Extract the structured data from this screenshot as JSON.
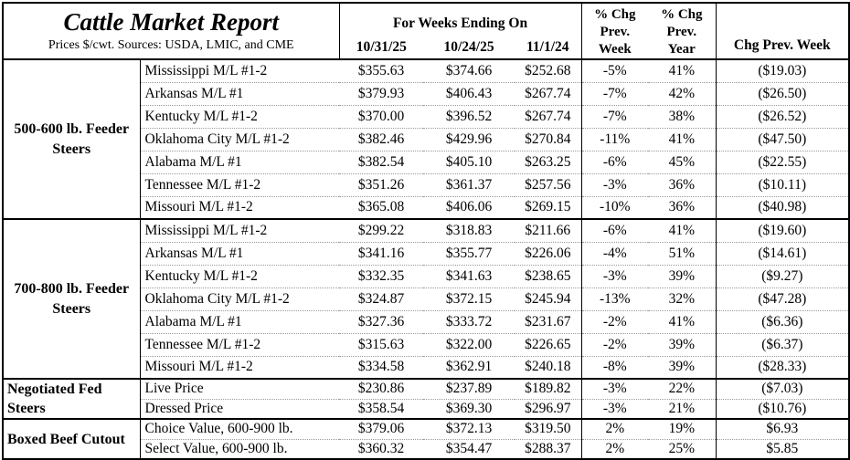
{
  "header": {
    "title": "Cattle Market Report",
    "subtitle": "Prices $/cwt. Sources: USDA, LMIC, and CME",
    "weeks_label": "For Weeks Ending On",
    "dates": [
      "10/31/25",
      "10/24/25",
      "11/1/24"
    ],
    "pct_chg_week": [
      "% Chg",
      "Prev.",
      "Week"
    ],
    "pct_chg_year": [
      "% Chg",
      "Prev.",
      "Year"
    ],
    "chg_prev_week": "Chg Prev. Week"
  },
  "sections": [
    {
      "group": "500-600 lb. Feeder Steers",
      "align": "center",
      "rows": [
        {
          "item": "Mississippi M/L #1-2",
          "values": [
            "$355.63",
            "$374.66",
            "$252.68",
            "-5%",
            "41%",
            "($19.03)"
          ]
        },
        {
          "item": "Arkansas M/L #1",
          "values": [
            "$379.93",
            "$406.43",
            "$267.74",
            "-7%",
            "42%",
            "($26.50)"
          ]
        },
        {
          "item": "Kentucky M/L #1-2",
          "values": [
            "$370.00",
            "$396.52",
            "$267.74",
            "-7%",
            "38%",
            "($26.52)"
          ]
        },
        {
          "item": "Oklahoma City M/L #1-2",
          "values": [
            "$382.46",
            "$429.96",
            "$270.84",
            "-11%",
            "41%",
            "($47.50)"
          ]
        },
        {
          "item": "Alabama M/L #1",
          "values": [
            "$382.54",
            "$405.10",
            "$263.25",
            "-6%",
            "45%",
            "($22.55)"
          ]
        },
        {
          "item": "Tennessee M/L #1-2",
          "values": [
            "$351.26",
            "$361.37",
            "$257.56",
            "-3%",
            "36%",
            "($10.11)"
          ]
        },
        {
          "item": "Missouri M/L #1-2",
          "values": [
            "$365.08",
            "$406.06",
            "$269.15",
            "-10%",
            "36%",
            "($40.98)"
          ]
        }
      ]
    },
    {
      "group": "700-800 lb. Feeder Steers",
      "align": "center",
      "rows": [
        {
          "item": "Mississippi M/L #1-2",
          "values": [
            "$299.22",
            "$318.83",
            "$211.66",
            "-6%",
            "41%",
            "($19.60)"
          ]
        },
        {
          "item": "Arkansas M/L #1",
          "values": [
            "$341.16",
            "$355.77",
            "$226.06",
            "-4%",
            "51%",
            "($14.61)"
          ]
        },
        {
          "item": "Kentucky M/L #1-2",
          "values": [
            "$332.35",
            "$341.63",
            "$238.65",
            "-3%",
            "39%",
            "($9.27)"
          ]
        },
        {
          "item": "Oklahoma City M/L #1-2",
          "values": [
            "$324.87",
            "$372.15",
            "$245.94",
            "-13%",
            "32%",
            "($47.28)"
          ]
        },
        {
          "item": "Alabama M/L #1",
          "values": [
            "$327.36",
            "$333.72",
            "$231.67",
            "-2%",
            "41%",
            "($6.36)"
          ]
        },
        {
          "item": "Tennessee M/L #1-2",
          "values": [
            "$315.63",
            "$322.00",
            "$226.65",
            "-2%",
            "39%",
            "($6.37)"
          ]
        },
        {
          "item": "Missouri M/L #1-2",
          "values": [
            "$334.58",
            "$362.91",
            "$240.18",
            "-8%",
            "39%",
            "($28.33)"
          ]
        }
      ]
    },
    {
      "group": "Negotiated Fed Steers",
      "align": "left",
      "rows": [
        {
          "item": "Live Price",
          "values": [
            "$230.86",
            "$237.89",
            "$189.82",
            "-3%",
            "22%",
            "($7.03)"
          ]
        },
        {
          "item": "Dressed Price",
          "values": [
            "$358.54",
            "$369.30",
            "$296.97",
            "-3%",
            "21%",
            "($10.76)"
          ]
        }
      ]
    },
    {
      "group": "Boxed Beef Cutout",
      "align": "left",
      "rows": [
        {
          "item": "Choice Value, 600-900 lb.",
          "values": [
            "$379.06",
            "$372.13",
            "$319.50",
            "2%",
            "19%",
            "$6.93"
          ]
        },
        {
          "item": "Select Value, 600-900 lb.",
          "values": [
            "$360.32",
            "$354.47",
            "$288.37",
            "2%",
            "25%",
            "$5.85"
          ]
        }
      ]
    }
  ]
}
